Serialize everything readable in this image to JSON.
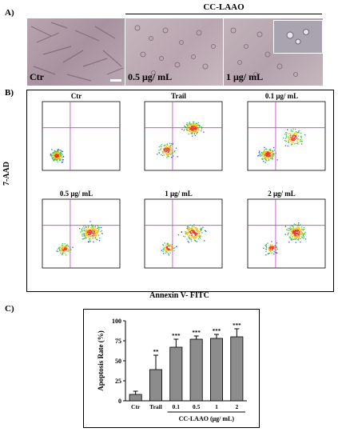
{
  "panels": {
    "a_label": "A)",
    "b_label": "B)",
    "c_label": "C)"
  },
  "micrographs": {
    "group_title": "CC-LAAO",
    "images": [
      {
        "caption": "Ctr"
      },
      {
        "caption": "0.5 μg/ mL"
      },
      {
        "caption": "1 μg/ mL"
      }
    ]
  },
  "flow": {
    "y_label": "7-AAD",
    "x_label": "Annexin V- FITC",
    "plots": [
      {
        "title": "Ctr"
      },
      {
        "title": "Trail"
      },
      {
        "title": "0.1 μg/ mL"
      },
      {
        "title": "0.5 μg/ mL"
      },
      {
        "title": "1 μg/ mL"
      },
      {
        "title": "2 μg/ mL"
      }
    ]
  },
  "chart_data": {
    "type": "bar",
    "ylabel": "Apoptosis Rate (%)",
    "xgroup_label": "CC-LAAO (μg/ mL)",
    "categories": [
      "Ctr",
      "Trail",
      "0.1",
      "0.5",
      "1",
      "2"
    ],
    "values": [
      8,
      39,
      67,
      77,
      78,
      80
    ],
    "errors": [
      4,
      18,
      10,
      4,
      5,
      10
    ],
    "significance": [
      "",
      "**",
      "***",
      "***",
      "***",
      "***"
    ],
    "ylim": [
      0,
      100
    ],
    "yticks": [
      0,
      25,
      50,
      75,
      100
    ],
    "bar_color": "#8c8c8c"
  }
}
